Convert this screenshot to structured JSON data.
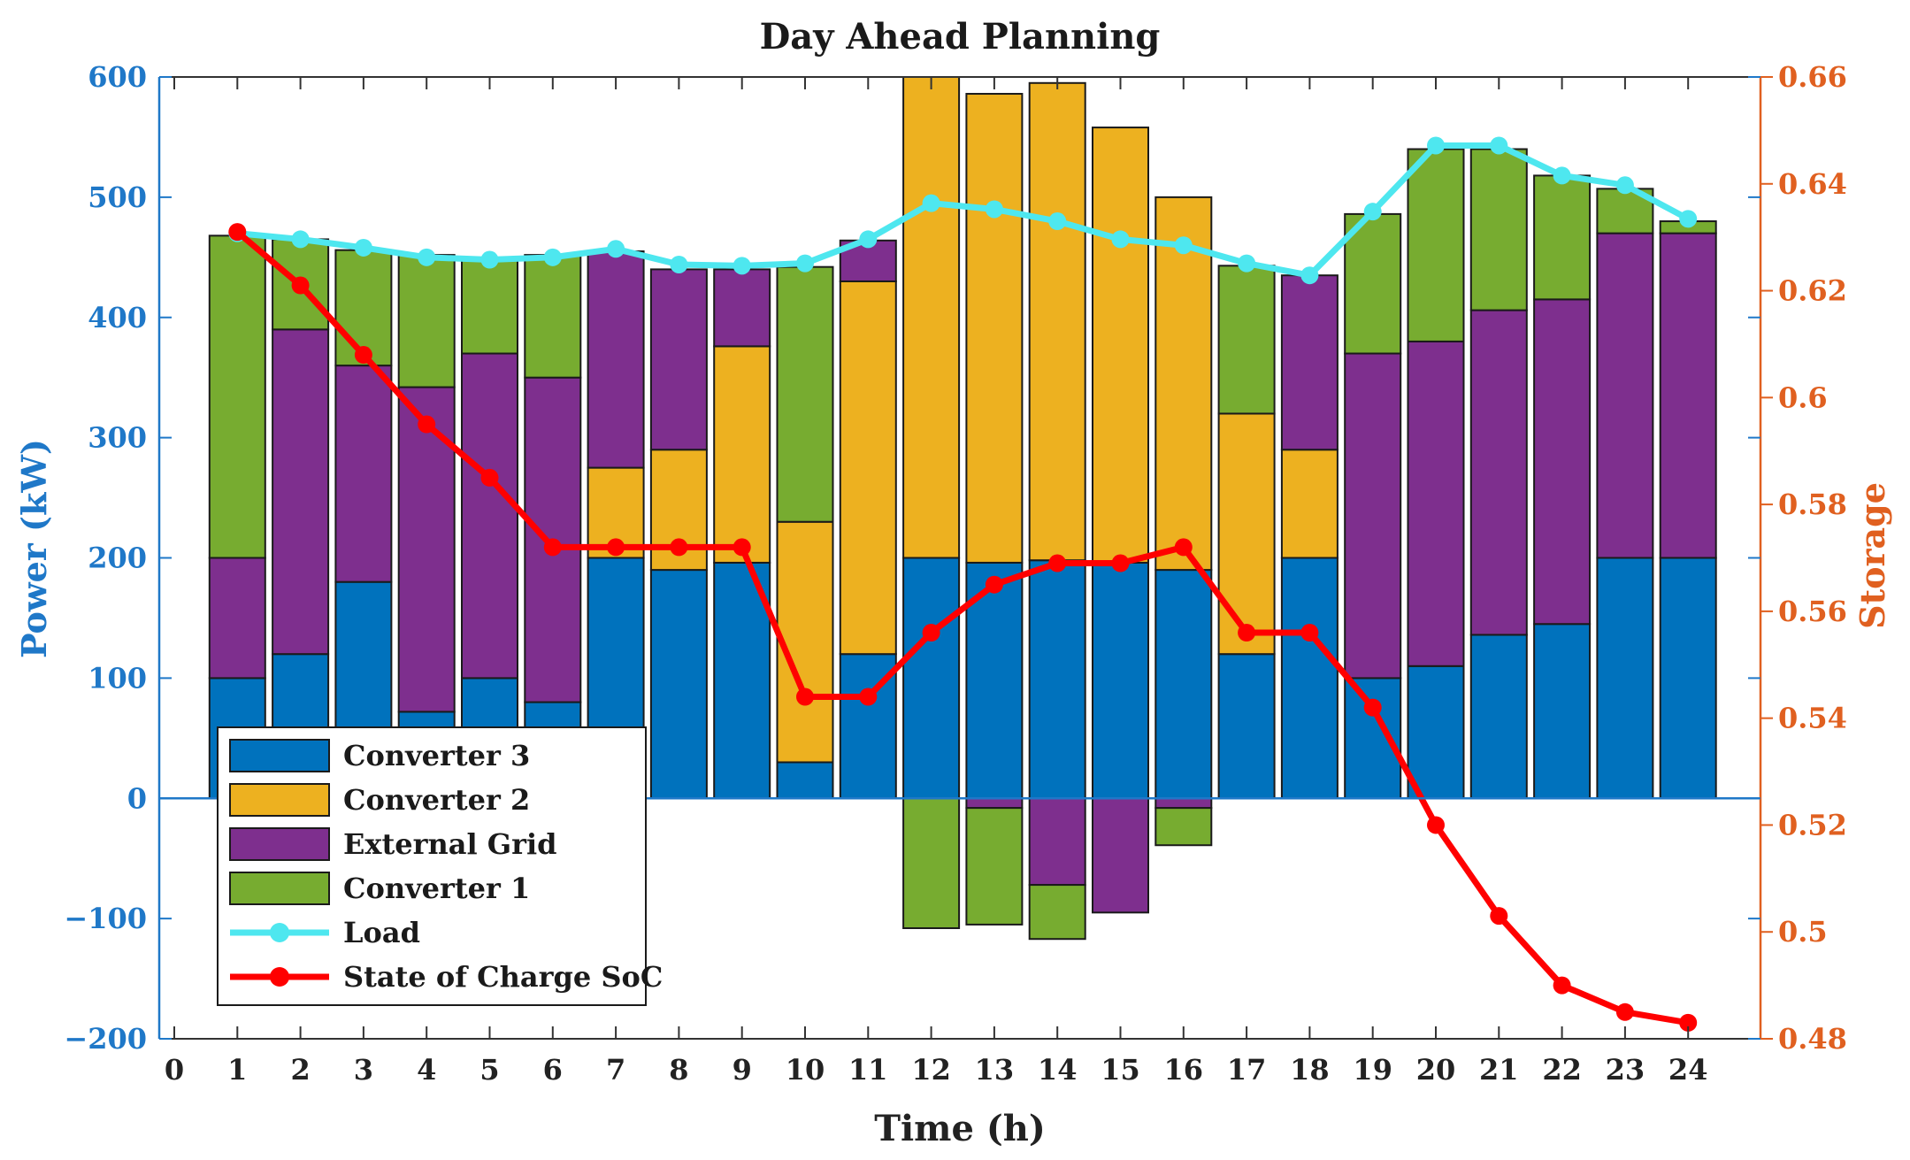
{
  "chart_data": {
    "type": "bar",
    "stacked": true,
    "title": "Day Ahead Planning",
    "xlabel": "Time (h)",
    "ylabel": "Power (kW)",
    "y2label": "Storage",
    "xlim": [
      0,
      25
    ],
    "ylim": [
      -200,
      600
    ],
    "y2lim": [
      0.48,
      0.66
    ],
    "x_ticks": [
      "0",
      "1",
      "2",
      "3",
      "4",
      "5",
      "6",
      "7",
      "8",
      "9",
      "10",
      "11",
      "12",
      "13",
      "14",
      "15",
      "16",
      "17",
      "18",
      "19",
      "20",
      "21",
      "22",
      "23",
      "24"
    ],
    "y_ticks": [
      "600",
      "500",
      "400",
      "300",
      "200",
      "100",
      "0",
      "−100",
      "−200"
    ],
    "y2_ticks": [
      "0.66",
      "0.64",
      "0.62",
      "0.6",
      "0.58",
      "0.56",
      "0.54",
      "0.52",
      "0.5",
      "0.48"
    ],
    "categories": [
      "1",
      "2",
      "3",
      "4",
      "5",
      "6",
      "7",
      "8",
      "9",
      "10",
      "11",
      "12",
      "13",
      "14",
      "15",
      "16",
      "17",
      "18",
      "19",
      "20",
      "21",
      "22",
      "23",
      "24"
    ],
    "series": [
      {
        "name": "Converter 3",
        "color": "#0072bd",
        "values": [
          100,
          120,
          180,
          72,
          100,
          80,
          200,
          190,
          196,
          30,
          120,
          200,
          196,
          198,
          196,
          190,
          120,
          200,
          100,
          110,
          136,
          145,
          200,
          200
        ]
      },
      {
        "name": "Converter 2",
        "color": "#edb120",
        "values": [
          0,
          0,
          0,
          0,
          0,
          0,
          75,
          100,
          180,
          200,
          310,
          400,
          390,
          397,
          362,
          310,
          200,
          90,
          0,
          0,
          0,
          0,
          0,
          0
        ]
      },
      {
        "name": "External Grid",
        "color": "#7e2f8e",
        "values": [
          100,
          270,
          180,
          270,
          270,
          270,
          180,
          150,
          64,
          0,
          34,
          0,
          -8,
          -72,
          -95,
          -8,
          0,
          145,
          270,
          270,
          270,
          270,
          270,
          270
        ]
      },
      {
        "name": "Converter 1",
        "color": "#77ac30",
        "values": [
          268,
          75,
          96,
          110,
          78,
          102,
          0,
          0,
          0,
          212,
          0,
          -108,
          -97,
          -45,
          0,
          -31,
          123,
          0,
          116,
          160,
          134,
          103,
          37,
          10
        ]
      }
    ],
    "lines": [
      {
        "name": "Load",
        "color": "#4ee7ef",
        "axis": "left",
        "values": [
          470,
          465,
          458,
          450,
          448,
          450,
          457,
          444,
          443,
          445,
          465,
          495,
          490,
          480,
          465,
          460,
          445,
          435,
          488,
          543,
          543,
          518,
          510,
          482
        ]
      },
      {
        "name": "State of Charge SoC",
        "color": "#ff0000",
        "axis": "right",
        "values": [
          0.631,
          0.621,
          0.608,
          0.595,
          0.585,
          0.572,
          0.572,
          0.572,
          0.572,
          0.544,
          0.544,
          0.556,
          0.565,
          0.569,
          0.569,
          0.572,
          0.556,
          0.556,
          0.542,
          0.52,
          0.503,
          0.49,
          0.485,
          0.483
        ]
      }
    ],
    "legend_position": "bottom-left"
  }
}
